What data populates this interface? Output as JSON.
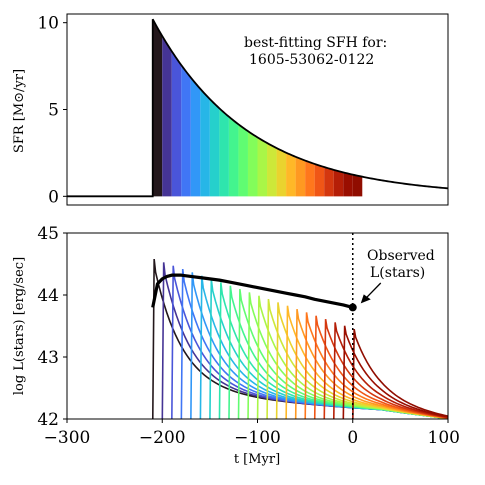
{
  "chart_data": [
    {
      "type": "area",
      "panel": "top",
      "xlim": [
        -300,
        100
      ],
      "ylim": [
        -0.5,
        10.5
      ],
      "ylabel": "SFR [M⊙/yr]",
      "xlabel": "",
      "yticks": [
        "0",
        "5",
        "10"
      ],
      "ytick_values": [
        0,
        5,
        10
      ],
      "grid": false,
      "annotation_lines": [
        "best-fitting SFH for:",
        "1605-53062-0122"
      ],
      "sfh": {
        "start_t": -210,
        "peak_sfr": 10.2,
        "decay_myr": 100,
        "x": [
          -300,
          -210,
          -210,
          -150,
          -100,
          -50,
          0,
          50,
          100
        ],
        "y": [
          0,
          0,
          10.2,
          5.6,
          3.4,
          2.1,
          1.25,
          0.77,
          0.47
        ]
      },
      "filled_bins": {
        "start": -210,
        "end": 10,
        "n_bins": 22,
        "colormap": "turbo (dark blue to dark red)"
      }
    },
    {
      "type": "line",
      "panel": "bottom",
      "xlim": [
        -300,
        100
      ],
      "ylim": [
        42,
        45
      ],
      "xlabel": "t [Myr]",
      "ylabel": "log L(stars) [erg/sec]",
      "xticks": [
        "−300",
        "−200",
        "−100",
        "0",
        "100"
      ],
      "xtick_values": [
        -300,
        -200,
        -100,
        0,
        100
      ],
      "yticks": [
        "42",
        "43",
        "44",
        "45"
      ],
      "ytick_values": [
        42,
        43,
        44,
        45
      ],
      "grid": false,
      "observed_t": 0,
      "observed_logL": 43.8,
      "annotation_lines": [
        "Observed",
        "L(stars)"
      ],
      "total_luminosity": {
        "x": [
          -210,
          -205,
          -200,
          -195,
          -190,
          -180,
          -170,
          -160,
          -150,
          -140,
          -130,
          -120,
          -110,
          -100,
          -90,
          -80,
          -70,
          -60,
          -50,
          -40,
          -30,
          -20,
          -10,
          0
        ],
        "y": [
          43.8,
          44.18,
          44.26,
          44.3,
          44.32,
          44.32,
          44.3,
          44.28,
          44.26,
          44.24,
          44.21,
          44.18,
          44.15,
          44.12,
          44.09,
          44.06,
          44.03,
          44.0,
          43.97,
          43.93,
          43.9,
          43.87,
          43.84,
          43.8
        ]
      },
      "burst_series": {
        "start": -210,
        "step": 10,
        "count": 22,
        "peak_logL_first": 44.58,
        "peak_logL_last": 43.45,
        "colormap": "turbo (dark blue to dark red)"
      }
    }
  ]
}
